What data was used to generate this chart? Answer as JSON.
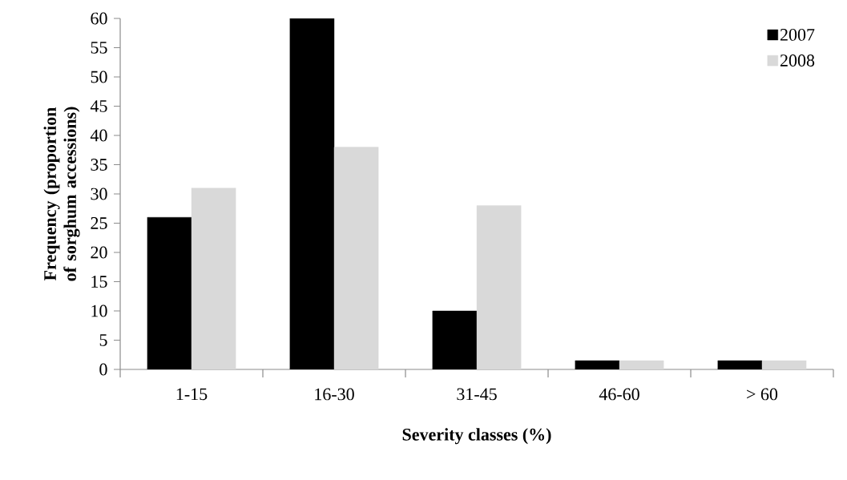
{
  "chart_data": {
    "type": "bar",
    "xlabel": "Severity classes (%)",
    "ylabel": "Frequency (proportion of sorghum accessions)",
    "categories": [
      "1-15",
      "16-30",
      "31-45",
      "46-60",
      "> 60"
    ],
    "series": [
      {
        "name": "2007",
        "color": "#000000",
        "values": [
          26,
          60,
          10,
          1.5,
          1.5
        ]
      },
      {
        "name": "2008",
        "color": "#d9d9d9",
        "values": [
          31,
          38,
          28,
          1.5,
          1.5
        ]
      }
    ],
    "ylim": [
      0,
      60
    ],
    "yticks": [
      0,
      5,
      10,
      15,
      20,
      25,
      30,
      35,
      40,
      45,
      50,
      55,
      60
    ],
    "grid": false,
    "legend": "top right"
  }
}
